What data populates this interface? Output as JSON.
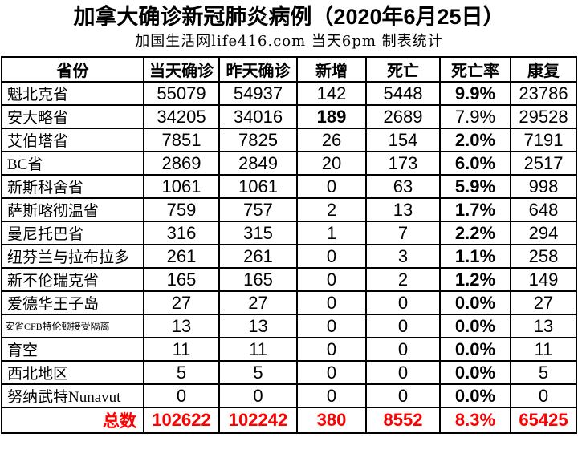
{
  "title": "加拿大确诊新冠肺炎病例（2020年6月25日）",
  "subtitle": "加国生活网life416.com 当天6pm 制表统计",
  "colors": {
    "highlight_red": "#ff0000",
    "text": "#000000",
    "border": "#000000",
    "background": "#ffffff"
  },
  "table": {
    "headers": [
      "省份",
      "当天确诊",
      "昨天确诊",
      "新增",
      "死亡",
      "死亡率",
      "康复"
    ],
    "rows": [
      {
        "province": "魁北克省",
        "values": [
          "55079",
          "54937",
          "142",
          "5448",
          "9.9%",
          "23786"
        ],
        "red": [
          4
        ],
        "bold": [
          4
        ]
      },
      {
        "province": "安大略省",
        "values": [
          "34205",
          "34016",
          "189",
          "2689",
          "7.9%",
          "29528"
        ],
        "red": [
          2
        ],
        "bold": [
          2
        ]
      },
      {
        "province": "艾伯塔省",
        "values": [
          "7851",
          "7825",
          "26",
          "154",
          "2.0%",
          "7191"
        ],
        "red": [],
        "bold": [
          4
        ]
      },
      {
        "province": "BC省",
        "values": [
          "2869",
          "2849",
          "20",
          "173",
          "6.0%",
          "2517"
        ],
        "red": [],
        "bold": [
          4
        ]
      },
      {
        "province": "新斯科舍省",
        "values": [
          "1061",
          "1061",
          "0",
          "63",
          "5.9%",
          "998"
        ],
        "red": [],
        "bold": [
          4
        ]
      },
      {
        "province": "萨斯喀彻温省",
        "values": [
          "759",
          "757",
          "2",
          "13",
          "1.7%",
          "648"
        ],
        "red": [],
        "bold": [
          4
        ]
      },
      {
        "province": "曼尼托巴省",
        "values": [
          "316",
          "315",
          "1",
          "7",
          "2.2%",
          "294"
        ],
        "red": [],
        "bold": [
          4
        ]
      },
      {
        "province": "纽芬兰与拉布拉多",
        "values": [
          "261",
          "261",
          "0",
          "3",
          "1.1%",
          "258"
        ],
        "red": [],
        "bold": [
          4
        ]
      },
      {
        "province": "新不伦瑞克省",
        "values": [
          "165",
          "165",
          "0",
          "2",
          "1.2%",
          "149"
        ],
        "red": [],
        "bold": [
          4
        ]
      },
      {
        "province": "爱德华王子岛",
        "values": [
          "27",
          "27",
          "0",
          "0",
          "0.0%",
          "27"
        ],
        "red": [],
        "bold": [
          4
        ]
      },
      {
        "province": "安省CFB特伦顿接受隔离",
        "values": [
          "13",
          "13",
          "0",
          "0",
          "0.0%",
          "13"
        ],
        "red": [],
        "bold": [
          4
        ],
        "small": true
      },
      {
        "province": "育空",
        "values": [
          "11",
          "11",
          "0",
          "0",
          "0.0%",
          "11"
        ],
        "red": [],
        "bold": [
          4
        ]
      },
      {
        "province": "西北地区",
        "values": [
          "5",
          "5",
          "0",
          "0",
          "0.0%",
          "5"
        ],
        "red": [],
        "bold": [
          4
        ]
      },
      {
        "province": "努纳武特Nunavut",
        "values": [
          "0",
          "0",
          "0",
          "0",
          "0.0%",
          "0"
        ],
        "red": [],
        "bold": [
          4
        ]
      }
    ],
    "total": {
      "label": "总数",
      "values": [
        "102622",
        "102242",
        "380",
        "8552",
        "8.3%",
        "65425"
      ]
    }
  },
  "chart_data": {
    "type": "table",
    "title": "加拿大确诊新冠肺炎病例（2020年6月25日）",
    "subtitle": "加国生活网life416.com 当天6pm 制表统计",
    "columns": [
      "省份",
      "当天确诊",
      "昨天确诊",
      "新增",
      "死亡",
      "死亡率",
      "康复"
    ],
    "rows": [
      [
        "魁北克省",
        55079,
        54937,
        142,
        5448,
        "9.9%",
        23786
      ],
      [
        "安大略省",
        34205,
        34016,
        189,
        2689,
        "7.9%",
        29528
      ],
      [
        "艾伯塔省",
        7851,
        7825,
        26,
        154,
        "2.0%",
        7191
      ],
      [
        "BC省",
        2869,
        2849,
        20,
        173,
        "6.0%",
        2517
      ],
      [
        "新斯科舍省",
        1061,
        1061,
        0,
        63,
        "5.9%",
        998
      ],
      [
        "萨斯喀彻温省",
        759,
        757,
        2,
        13,
        "1.7%",
        648
      ],
      [
        "曼尼托巴省",
        316,
        315,
        1,
        7,
        "2.2%",
        294
      ],
      [
        "纽芬兰与拉布拉多",
        261,
        261,
        0,
        3,
        "1.1%",
        258
      ],
      [
        "新不伦瑞克省",
        165,
        165,
        0,
        2,
        "1.2%",
        149
      ],
      [
        "爱德华王子岛",
        27,
        27,
        0,
        0,
        "0.0%",
        27
      ],
      [
        "安省CFB特伦顿接受隔离",
        13,
        13,
        0,
        0,
        "0.0%",
        13
      ],
      [
        "育空",
        11,
        11,
        0,
        0,
        "0.0%",
        11
      ],
      [
        "西北地区",
        5,
        5,
        0,
        0,
        "0.0%",
        5
      ],
      [
        "努纳武特Nunavut",
        0,
        0,
        0,
        0,
        "0.0%",
        0
      ]
    ],
    "total_row": [
      "总数",
      102622,
      102242,
      380,
      8552,
      "8.3%",
      65425
    ]
  }
}
